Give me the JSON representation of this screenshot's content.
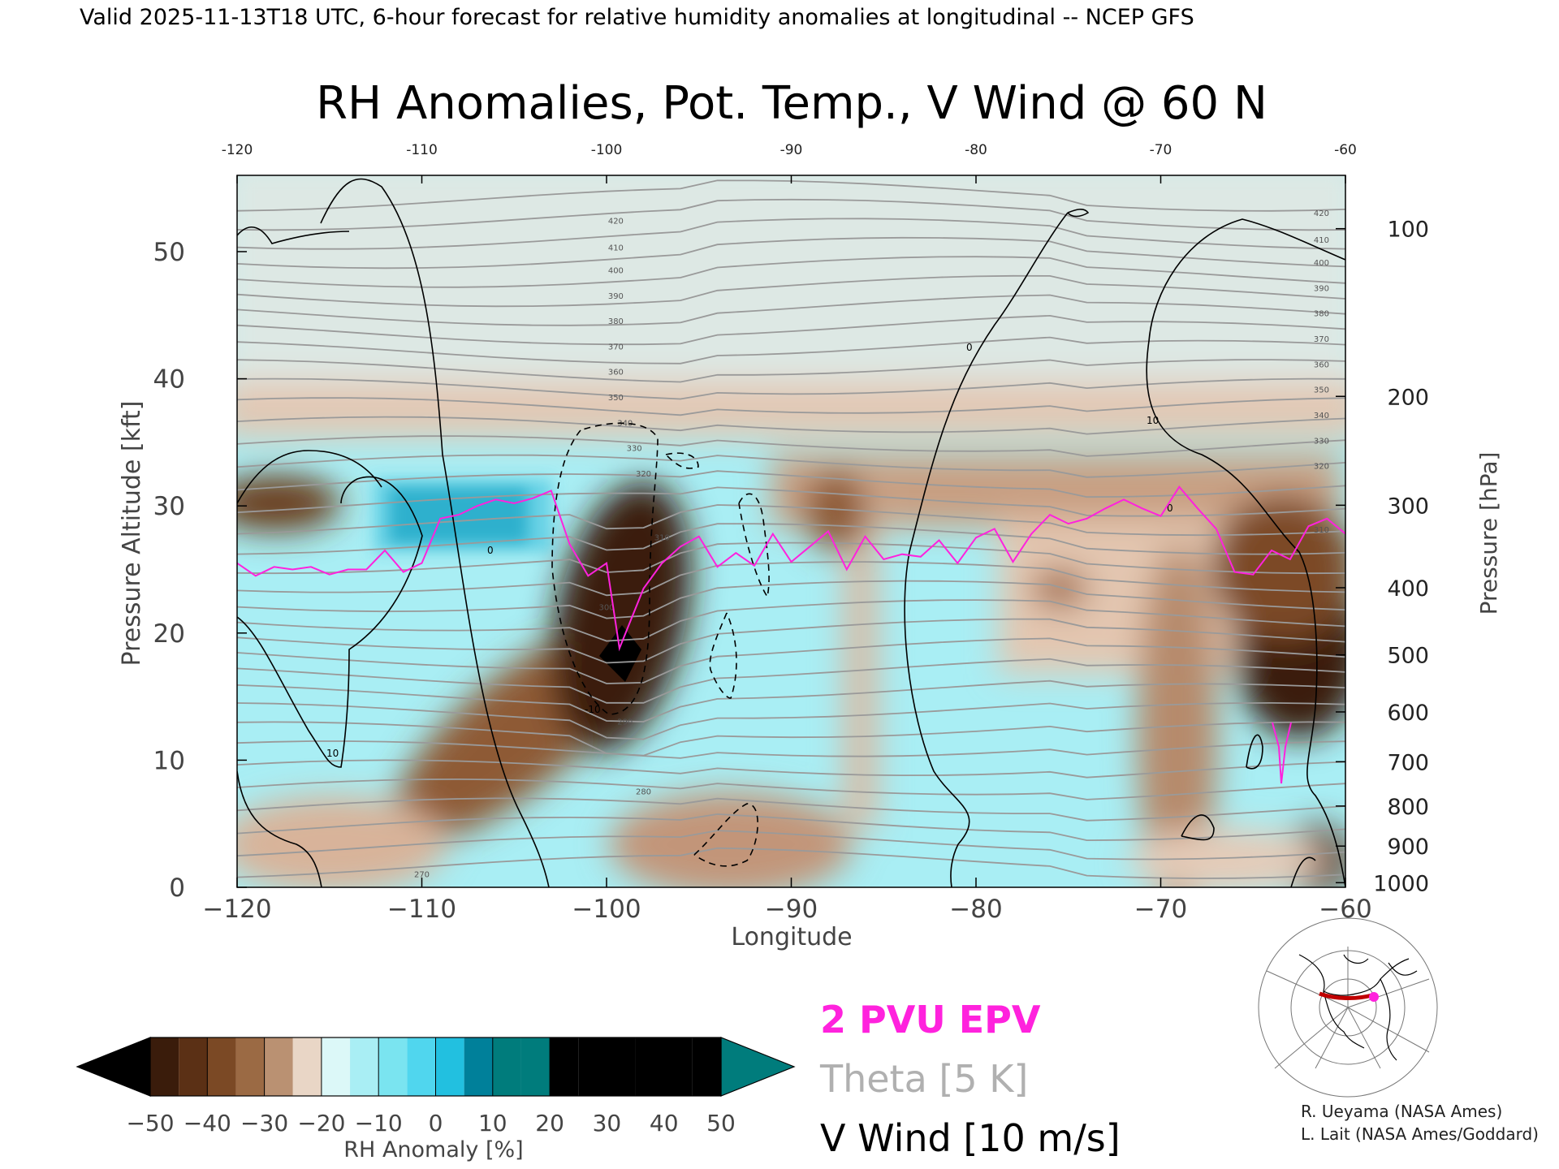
{
  "header": {
    "valid_line": "Valid 2025-11-13T18 UTC, 6-hour forecast for relative humidity anomalies at longitudinal -- NCEP GFS"
  },
  "chart_data": {
    "type": "heatmap",
    "title": "RH Anomalies, Pot. Temp., V Wind @ 60 N",
    "xlabel": "Longitude",
    "ylabel_left": "Pressure Altitude [kft]",
    "ylabel_right": "Pressure [hPa]",
    "xlim": [
      -120,
      -60
    ],
    "ylim": [
      0,
      56
    ],
    "x_ticks_bottom": [
      "−120",
      "−110",
      "−100",
      "−90",
      "−80",
      "−70",
      "−60"
    ],
    "x_ticks_top": [
      "-120",
      "-110",
      "-100",
      "-90",
      "-80",
      "-70",
      "-60"
    ],
    "y_ticks_left": [
      "0",
      "10",
      "20",
      "30",
      "40",
      "50"
    ],
    "y_ticks_right": [
      {
        "hPa": 100,
        "label": "100"
      },
      {
        "hPa": 200,
        "label": "200"
      },
      {
        "hPa": 300,
        "label": "300"
      },
      {
        "hPa": 400,
        "label": "400"
      },
      {
        "hPa": 500,
        "label": "500"
      },
      {
        "hPa": 600,
        "label": "600"
      },
      {
        "hPa": 700,
        "label": "700"
      },
      {
        "hPa": 800,
        "label": "800"
      },
      {
        "hPa": 900,
        "label": "900"
      },
      {
        "hPa": 1000,
        "label": "1000"
      }
    ],
    "pv2_line": {
      "name": "2 PVU EPV",
      "color": "#ff22dd",
      "lon": [
        -120,
        -119,
        -118,
        -117,
        -116,
        -115,
        -114,
        -113,
        -112,
        -111,
        -110,
        -109,
        -108,
        -107,
        -106,
        -105,
        -104,
        -103,
        -102,
        -101,
        -100,
        -99.3,
        -98,
        -97,
        -96,
        -95,
        -94,
        -93,
        -92,
        -91,
        -90,
        -89,
        -88,
        -87,
        -86,
        -85,
        -84,
        -83,
        -82,
        -81,
        -80,
        -79,
        -78,
        -77,
        -76,
        -75,
        -74,
        -73,
        -72,
        -71,
        -70,
        -69,
        -68,
        -67,
        -66,
        -65,
        -64,
        -63,
        -62,
        -61,
        -60
      ],
      "alt_kft": [
        25.5,
        24.5,
        25.2,
        25.0,
        25.2,
        24.6,
        25.0,
        25.0,
        26.5,
        24.8,
        25.5,
        29.0,
        29.3,
        30.0,
        30.5,
        30.2,
        30.6,
        31.2,
        27.0,
        24.5,
        25.5,
        18.8,
        23.5,
        25.5,
        26.8,
        27.6,
        25.2,
        26.3,
        25.3,
        27.8,
        25.6,
        26.8,
        28.0,
        25.0,
        27.6,
        25.8,
        26.2,
        26.0,
        27.3,
        25.5,
        27.5,
        28.2,
        25.6,
        27.8,
        29.3,
        28.6,
        29.0,
        29.8,
        30.5,
        29.8,
        29.2,
        31.5,
        29.8,
        28.2,
        24.8,
        24.6,
        26.5,
        25.8,
        28.4,
        29.0,
        27.8
      ]
    },
    "theta": {
      "name": "Theta [5 K]",
      "color": "#9a9a9a",
      "labels": [
        "270",
        "280",
        "290",
        "300",
        "310",
        "320",
        "330",
        "340",
        "350",
        "360",
        "370",
        "380",
        "390",
        "400",
        "410",
        "420"
      ]
    },
    "v_wind": {
      "name": "V Wind [10 m/s]",
      "color": "#000000",
      "labels": [
        "0",
        "10",
        "-10"
      ]
    },
    "colorbar": {
      "label": "RH Anomaly [%]",
      "tick_labels": [
        "−50",
        "−40",
        "−30",
        "−20",
        "−10",
        "0",
        "10",
        "20",
        "30",
        "40",
        "50"
      ],
      "bins": [
        "#000000",
        "#3a1c0b",
        "#5b3015",
        "#7b4925",
        "#9b6a44",
        "#ba9172",
        "#e9d6c6",
        "#dcf8f8",
        "#a9eef4",
        "#7ae4f0",
        "#50d6ee",
        "#22c0e0",
        "#00809a",
        "#007c7c"
      ]
    }
  },
  "credits": {
    "line1": "R. Ueyama (NASA Ames)",
    "line2": "L. Lait (NASA Ames/Goddard)"
  }
}
